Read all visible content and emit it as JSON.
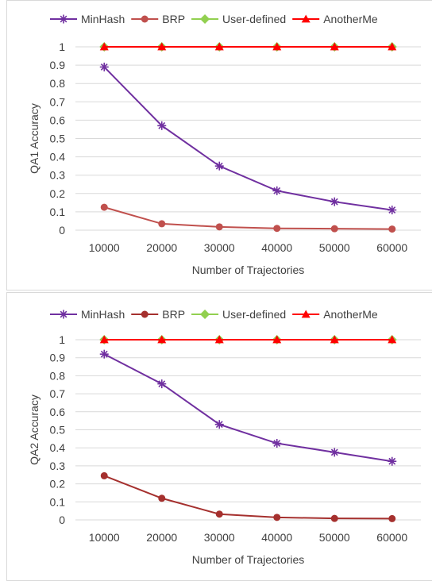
{
  "colors": {
    "minhash": "#7030a0",
    "brp": "#c0504d",
    "brp_dark": "#b03a2e",
    "user_defined": "#92d050",
    "anotherme": "#ff0000",
    "grid": "#d9d9d9",
    "text": "#404040"
  },
  "chart_data": [
    {
      "type": "line",
      "title": "",
      "xlabel": "Number of Trajectories",
      "ylabel": "QA1  Accuracy",
      "categories": [
        "10000",
        "20000",
        "30000",
        "40000",
        "50000",
        "60000"
      ],
      "yticks": [
        "0",
        "0.1",
        "0.2",
        "0.3",
        "0.4",
        "0.5",
        "0.6",
        "0.7",
        "0.8",
        "0.9",
        "1"
      ],
      "ylim": [
        0,
        1
      ],
      "grid": true,
      "legend_position": "top",
      "series": [
        {
          "name": "MinHash",
          "values": [
            0.89,
            0.57,
            0.35,
            0.215,
            0.155,
            0.11
          ],
          "marker": "asterisk",
          "color": "#7030a0"
        },
        {
          "name": "BRP",
          "values": [
            0.125,
            0.035,
            0.018,
            0.01,
            0.008,
            0.006
          ],
          "marker": "circle",
          "color": "#c0504d"
        },
        {
          "name": "User-defined",
          "values": [
            1,
            1,
            1,
            1,
            1,
            1
          ],
          "marker": "diamond",
          "color": "#92d050"
        },
        {
          "name": "AnotherMe",
          "values": [
            1,
            1,
            1,
            1,
            1,
            1
          ],
          "marker": "triangle",
          "color": "#ff0000"
        }
      ]
    },
    {
      "type": "line",
      "title": "",
      "xlabel": "Number of Trajectories",
      "ylabel": "QA2 Accuracy",
      "categories": [
        "10000",
        "20000",
        "30000",
        "40000",
        "50000",
        "60000"
      ],
      "yticks": [
        "0",
        "0.1",
        "0.2",
        "0.3",
        "0.4",
        "0.5",
        "0.6",
        "0.7",
        "0.8",
        "0.9",
        "1"
      ],
      "ylim": [
        0,
        1
      ],
      "grid": true,
      "legend_position": "top",
      "series": [
        {
          "name": "MinHash",
          "values": [
            0.92,
            0.755,
            0.53,
            0.425,
            0.375,
            0.325
          ],
          "marker": "asterisk",
          "color": "#7030a0"
        },
        {
          "name": "BRP",
          "values": [
            0.245,
            0.12,
            0.032,
            0.014,
            0.008,
            0.007
          ],
          "marker": "circle",
          "color": "#a5302e"
        },
        {
          "name": "User-defined",
          "values": [
            1,
            1,
            1,
            1,
            1,
            1
          ],
          "marker": "diamond",
          "color": "#92d050"
        },
        {
          "name": "AnotherMe",
          "values": [
            1,
            1,
            1,
            1,
            1,
            1
          ],
          "marker": "triangle",
          "color": "#ff0000"
        }
      ]
    }
  ]
}
